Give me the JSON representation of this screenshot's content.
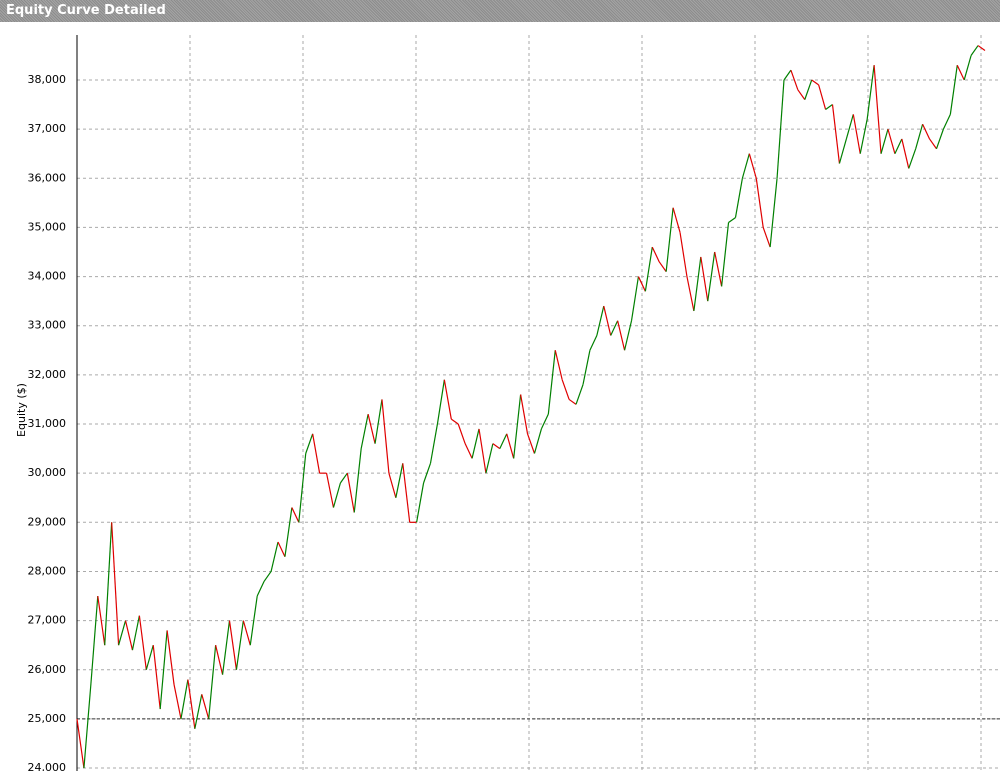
{
  "chart_data": {
    "type": "line",
    "title": "Equity Curve Detailed",
    "y_label": "Equity ($)",
    "ylim": [
      23940,
      38915
    ],
    "yticks": [
      {
        "value": 24000,
        "label": "24,000"
      },
      {
        "value": 25000,
        "label": "25,000"
      },
      {
        "value": 26000,
        "label": "26,000"
      },
      {
        "value": 27000,
        "label": "27,000"
      },
      {
        "value": 28000,
        "label": "28,000"
      },
      {
        "value": 29000,
        "label": "29,000"
      },
      {
        "value": 30000,
        "label": "30,000"
      },
      {
        "value": 31000,
        "label": "31,000"
      },
      {
        "value": 32000,
        "label": "32,000"
      },
      {
        "value": 33000,
        "label": "33,000"
      },
      {
        "value": 34000,
        "label": "34,000"
      },
      {
        "value": 35000,
        "label": "35,000"
      },
      {
        "value": 36000,
        "label": "36,000"
      },
      {
        "value": 37000,
        "label": "37,000"
      },
      {
        "value": 38000,
        "label": "38,000"
      }
    ],
    "grid": true,
    "reference_line": 25000,
    "color": "#e00000",
    "up_color": "#008000",
    "values": [
      25000,
      24000,
      25700,
      27500,
      26500,
      29000,
      26500,
      27000,
      26400,
      27100,
      26000,
      26500,
      25200,
      26800,
      25700,
      25000,
      25800,
      24800,
      25500,
      25000,
      26500,
      25900,
      27000,
      26000,
      27000,
      26500,
      27500,
      27800,
      28000,
      28600,
      28300,
      29300,
      29000,
      30400,
      30800,
      30000,
      30000,
      29300,
      29800,
      30000,
      29200,
      30500,
      31200,
      30600,
      31500,
      30000,
      29500,
      30200,
      29000,
      29000,
      29800,
      30200,
      31000,
      31900,
      31100,
      31000,
      30600,
      30300,
      30900,
      30000,
      30600,
      30500,
      30800,
      30300,
      31600,
      30800,
      30400,
      30900,
      31200,
      32500,
      31900,
      31500,
      31400,
      31800,
      32500,
      32800,
      33400,
      32800,
      33100,
      32500,
      33100,
      34000,
      33700,
      34600,
      34300,
      34100,
      35400,
      34900,
      34000,
      33300,
      34400,
      33500,
      34500,
      33800,
      35100,
      35200,
      36000,
      36500,
      36000,
      35000,
      34600,
      36000,
      38000,
      38200,
      37800,
      37600,
      38000,
      37900,
      37400,
      37500,
      36300,
      36800,
      37300,
      36500,
      37200,
      38300,
      36500,
      37000,
      36500,
      36800,
      36200,
      36600,
      37100,
      36800,
      36600,
      37000,
      37300,
      38300,
      38000,
      38500,
      38700,
      38600
    ]
  }
}
